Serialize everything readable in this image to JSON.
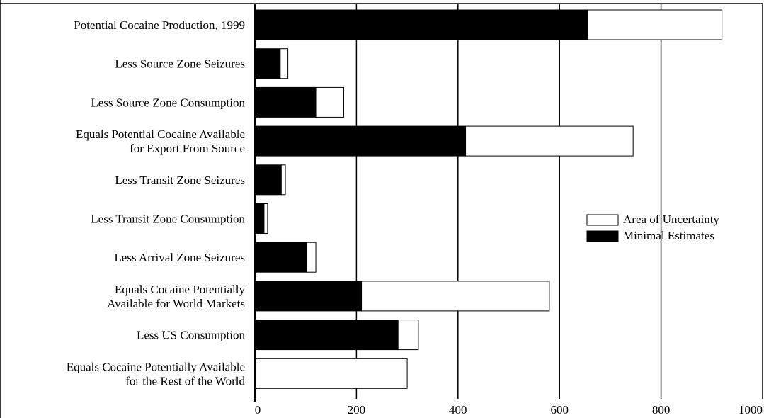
{
  "chart_data": {
    "type": "bar",
    "orientation": "horizontal",
    "stacked": true,
    "categories": [
      [
        "Potential Cocaine Production, 1999"
      ],
      [
        "Less Source Zone Seizures"
      ],
      [
        "Less Source Zone Consumption"
      ],
      [
        "Equals Potential Cocaine Available",
        "for Export From Source"
      ],
      [
        "Less Transit Zone Seizures"
      ],
      [
        "Less Transit Zone Consumption"
      ],
      [
        "Less Arrival Zone Seizures"
      ],
      [
        "Equals Cocaine Potentially",
        "Available for World Markets"
      ],
      [
        "Less US Consumption"
      ],
      [
        "Equals Cocaine Potentially Available",
        "for the Rest of the World"
      ]
    ],
    "series": [
      {
        "name": "Minimal Estimates",
        "color": "#000000",
        "values": [
          655,
          50,
          120,
          415,
          52,
          18,
          102,
          210,
          282,
          0
        ]
      },
      {
        "name": "Area of Uncertainty",
        "color": "#ffffff",
        "values": [
          265,
          15,
          55,
          330,
          8,
          7,
          18,
          370,
          40,
          300
        ]
      }
    ],
    "xlim": [
      0,
      1000
    ],
    "xticks": [
      0,
      200,
      400,
      600,
      800,
      1000
    ],
    "grid": "vertical",
    "legend_position": "right-middle",
    "legend_order": [
      "Area of Uncertainty",
      "Minimal Estimates"
    ],
    "title": "",
    "xlabel": "",
    "ylabel": ""
  }
}
